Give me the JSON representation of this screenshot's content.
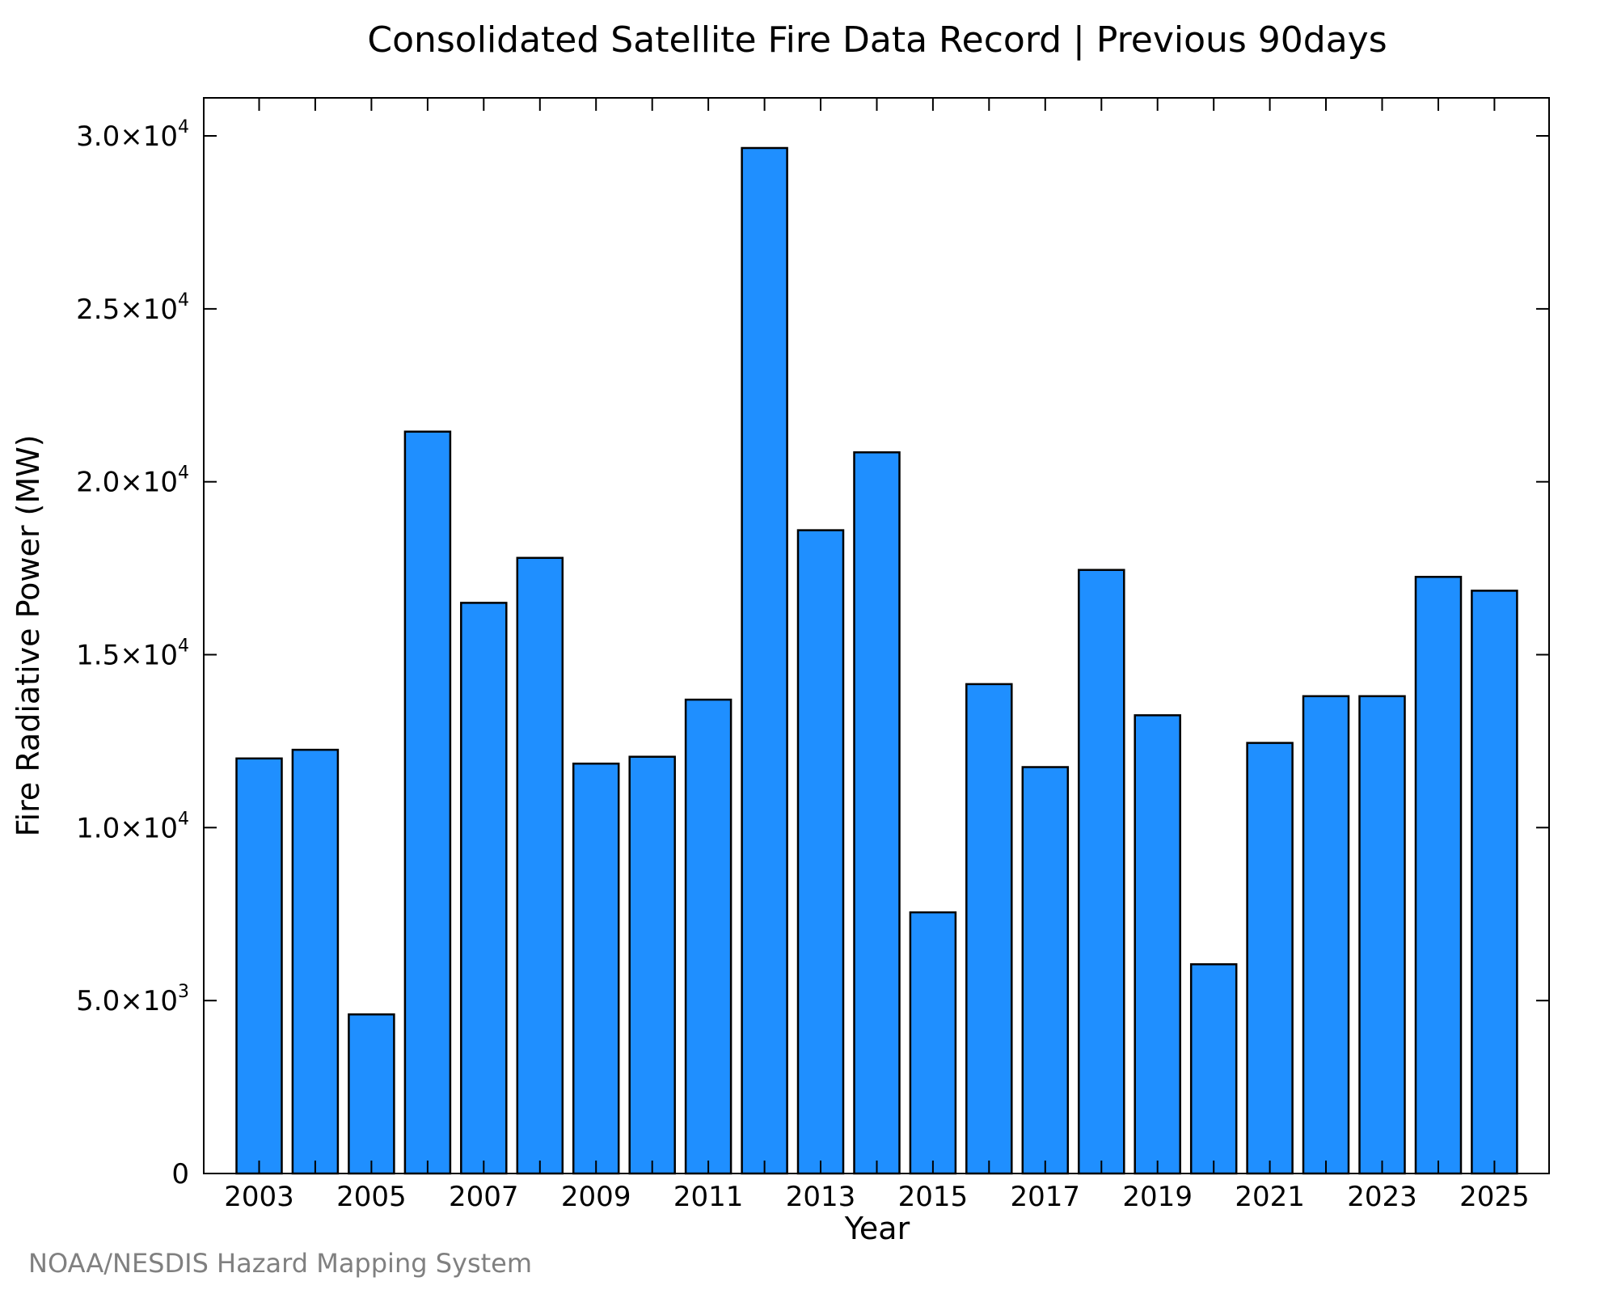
{
  "chart_data": {
    "type": "bar",
    "title": "Consolidated Satellite Fire Data Record | Previous 90days",
    "xlabel": "Year",
    "ylabel": "Fire Radiative Power (MW)",
    "categories": [
      "2003",
      "2004",
      "2005",
      "2006",
      "2007",
      "2008",
      "2009",
      "2010",
      "2011",
      "2012",
      "2013",
      "2014",
      "2015",
      "2016",
      "2017",
      "2018",
      "2019",
      "2020",
      "2021",
      "2022",
      "2023",
      "2024",
      "2025"
    ],
    "values": [
      12000,
      12250,
      4600,
      21450,
      16500,
      17800,
      11850,
      12050,
      13700,
      29650,
      18600,
      20850,
      7550,
      14150,
      11750,
      17450,
      13250,
      6050,
      12450,
      13800,
      13800,
      17250,
      16850
    ],
    "ylim": [
      0,
      31100
    ],
    "xtick_labels": [
      "2003",
      "2005",
      "2007",
      "2009",
      "2011",
      "2013",
      "2015",
      "2017",
      "2019",
      "2021",
      "2023",
      "2025"
    ],
    "yticks": [
      {
        "value": 0,
        "mantissa": "0",
        "exponent": ""
      },
      {
        "value": 5000,
        "mantissa": "5.0×10",
        "exponent": "3"
      },
      {
        "value": 10000,
        "mantissa": "1.0×10",
        "exponent": "4"
      },
      {
        "value": 15000,
        "mantissa": "1.5×10",
        "exponent": "4"
      },
      {
        "value": 20000,
        "mantissa": "2.0×10",
        "exponent": "4"
      },
      {
        "value": 25000,
        "mantissa": "2.5×10",
        "exponent": "4"
      },
      {
        "value": 30000,
        "mantissa": "3.0×10",
        "exponent": "4"
      }
    ],
    "bar_color": "#1f8fff",
    "bar_edge_color": "#000000",
    "grid": false,
    "credit": "NOAA/NESDIS Hazard Mapping System"
  }
}
